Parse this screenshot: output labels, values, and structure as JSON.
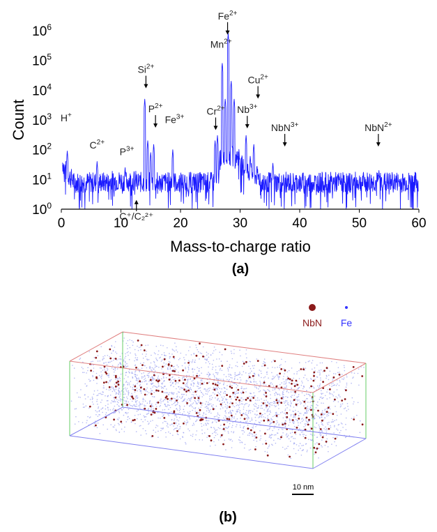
{
  "chart_data": {
    "type": "line",
    "xlabel": "Mass-to-charge ratio",
    "ylabel": "Count",
    "xlim": [
      0,
      60
    ],
    "ylim": [
      1,
      1000000
    ],
    "yscale": "log",
    "x_ticks": [
      "0",
      "10",
      "20",
      "30",
      "40",
      "50",
      "60"
    ],
    "y_ticks": [
      {
        "base": "10",
        "exp": "0"
      },
      {
        "base": "10",
        "exp": "1"
      },
      {
        "base": "10",
        "exp": "2"
      },
      {
        "base": "10",
        "exp": "3"
      },
      {
        "base": "10",
        "exp": "4"
      },
      {
        "base": "10",
        "exp": "5"
      },
      {
        "base": "10",
        "exp": "6"
      }
    ],
    "line_color": "#1a1aff",
    "background_level": 8,
    "peaks": [
      {
        "x": 1,
        "y": 90
      },
      {
        "x": 6,
        "y": 40
      },
      {
        "x": 10.7,
        "y": 25
      },
      {
        "x": 14,
        "y": 5000
      },
      {
        "x": 14.5,
        "y": 200
      },
      {
        "x": 15,
        "y": 80
      },
      {
        "x": 15.5,
        "y": 150
      },
      {
        "x": 18.7,
        "y": 100
      },
      {
        "x": 25.8,
        "y": 200
      },
      {
        "x": 26.2,
        "y": 300
      },
      {
        "x": 27,
        "y": 80000
      },
      {
        "x": 27.5,
        "y": 5000
      },
      {
        "x": 28,
        "y": 800000
      },
      {
        "x": 28.5,
        "y": 20000
      },
      {
        "x": 29,
        "y": 5000
      },
      {
        "x": 31,
        "y": 300
      },
      {
        "x": 31.7,
        "y": 60
      },
      {
        "x": 32.3,
        "y": 150
      },
      {
        "x": 35.5,
        "y": 35
      },
      {
        "x": 53.3,
        "y": 20
      }
    ],
    "annotations": [
      {
        "base": "H",
        "sup": "+",
        "x": 0.8,
        "y": 900,
        "arrow": false
      },
      {
        "base": "C",
        "sup": "2+",
        "x": 6,
        "y": 110,
        "arrow": false
      },
      {
        "base": "P",
        "sup": "3+",
        "x": 11,
        "y": 65,
        "arrow": false
      },
      {
        "base": "Si",
        "sup": "2+",
        "x": 14.2,
        "y": 38000,
        "arrow": true
      },
      {
        "base": "P",
        "sup": "2+",
        "x": 15.8,
        "y": 1800,
        "arrow": true
      },
      {
        "base": "Fe",
        "sup": "3+",
        "x": 19,
        "y": 780,
        "arrow": false
      },
      {
        "base": "Cr",
        "sup": "2+",
        "x": 25.9,
        "y": 1500,
        "arrow": true
      },
      {
        "base": "Mn",
        "sup": "2+",
        "x": 26.8,
        "y": 270000,
        "arrow": false
      },
      {
        "base": "Fe",
        "sup": "2+",
        "x": 27.9,
        "y": 2400000,
        "arrow": true
      },
      {
        "base": "Cu",
        "sup": "2+",
        "x": 33,
        "y": 17000,
        "arrow": true
      },
      {
        "base": "Nb",
        "sup": "3+",
        "x": 31.2,
        "y": 1700,
        "arrow": true
      },
      {
        "base": "NbN",
        "sup": "3+",
        "x": 37.5,
        "y": 420,
        "arrow": true
      },
      {
        "base": "NbN",
        "sup": "2+",
        "x": 53.2,
        "y": 420,
        "arrow": true
      }
    ],
    "annotation_bottom": {
      "label": "C⁺/C₂²⁺",
      "x": 12.6,
      "y": 0.45
    }
  },
  "panel_a_label": "(a)",
  "panel_b_label": "(b)",
  "legend": [
    {
      "label": "NbN",
      "color": "#8b1a1a"
    },
    {
      "label": "Fe",
      "color": "#3333ff"
    }
  ],
  "scale_bar_label": "10 nm",
  "atom_map_colors": {
    "fe": "#9aa0f0",
    "nbn": "#8b1a1a",
    "box_top": "#e08080",
    "box_side": "#66cc66",
    "box_back": "#8080f0"
  }
}
